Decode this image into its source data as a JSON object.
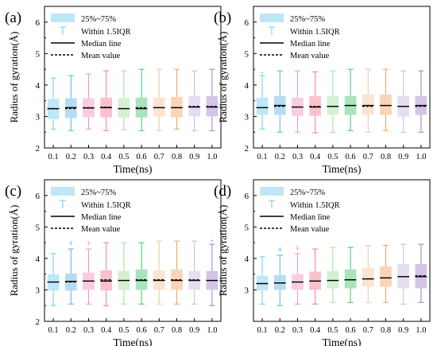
{
  "figure": {
    "ylabel": "Radius of gyration(Å)",
    "xlabel": "Time(ns)",
    "legend": {
      "box": "25%~75%",
      "whisker": "Within 1.5IQR",
      "median": "Median line",
      "mean": "Mean value"
    }
  },
  "palette": [
    "#6bcbf0",
    "#58b1e4",
    "#f48fc4",
    "#f5768e",
    "#9fe09a",
    "#3fc46a",
    "#f5c39b",
    "#f5a05a",
    "#c6b3e0",
    "#a07cc8"
  ],
  "chart_data": [
    {
      "type": "box",
      "panel_label": "(a)",
      "categories": [
        "0.1",
        "0.2",
        "0.3",
        "0.4",
        "0.5",
        "0.6",
        "0.7",
        "0.8",
        "0.9",
        "1.0"
      ],
      "yticks": [
        "2",
        "3",
        "4",
        "5",
        "6"
      ],
      "ylim": [
        2,
        6.5
      ],
      "boxes": [
        {
          "min": 2.6,
          "q1": 2.92,
          "median": 3.25,
          "mean": 3.24,
          "q3": 3.55,
          "max": 4.22,
          "outliers": []
        },
        {
          "min": 2.55,
          "q1": 2.95,
          "median": 3.28,
          "mean": 3.25,
          "q3": 3.58,
          "max": 4.3,
          "outliers": []
        },
        {
          "min": 2.6,
          "q1": 2.98,
          "median": 3.27,
          "mean": 3.28,
          "q3": 3.58,
          "max": 4.35,
          "outliers": []
        },
        {
          "min": 2.55,
          "q1": 2.97,
          "median": 3.28,
          "mean": 3.3,
          "q3": 3.6,
          "max": 4.45,
          "outliers": []
        },
        {
          "min": 2.58,
          "q1": 2.97,
          "median": 3.25,
          "mean": 3.25,
          "q3": 3.58,
          "max": 4.45,
          "outliers": []
        },
        {
          "min": 2.55,
          "q1": 2.97,
          "median": 3.25,
          "mean": 3.28,
          "q3": 3.6,
          "max": 4.5,
          "outliers": []
        },
        {
          "min": 2.55,
          "q1": 3.0,
          "median": 3.28,
          "mean": 3.28,
          "q3": 3.6,
          "max": 4.5,
          "outliers": []
        },
        {
          "min": 2.6,
          "q1": 2.97,
          "median": 3.28,
          "mean": 3.28,
          "q3": 3.62,
          "max": 4.5,
          "outliers": []
        },
        {
          "min": 2.55,
          "q1": 3.0,
          "median": 3.3,
          "mean": 3.32,
          "q3": 3.65,
          "max": 4.45,
          "outliers": []
        },
        {
          "min": 2.55,
          "q1": 3.0,
          "median": 3.3,
          "mean": 3.32,
          "q3": 3.65,
          "max": 4.5,
          "outliers": []
        }
      ]
    },
    {
      "type": "box",
      "panel_label": "(b)",
      "categories": [
        "0.1",
        "0.2",
        "0.3",
        "0.4",
        "0.5",
        "0.6",
        "0.7",
        "0.8",
        "0.9",
        "1.0"
      ],
      "yticks": [
        "2",
        "3",
        "4",
        "5",
        "6"
      ],
      "ylim": [
        2,
        6.5
      ],
      "boxes": [
        {
          "min": 2.6,
          "q1": 3.05,
          "median": 3.28,
          "mean": 3.28,
          "q3": 3.6,
          "max": 4.3,
          "outliers": [
            4.38
          ]
        },
        {
          "min": 2.5,
          "q1": 3.05,
          "median": 3.35,
          "mean": 3.32,
          "q3": 3.65,
          "max": 4.45,
          "outliers": []
        },
        {
          "min": 2.5,
          "q1": 3.02,
          "median": 3.3,
          "mean": 3.3,
          "q3": 3.6,
          "max": 4.45,
          "outliers": []
        },
        {
          "min": 2.48,
          "q1": 3.02,
          "median": 3.3,
          "mean": 3.32,
          "q3": 3.65,
          "max": 4.42,
          "outliers": []
        },
        {
          "min": 2.5,
          "q1": 3.05,
          "median": 3.32,
          "mean": 3.32,
          "q3": 3.65,
          "max": 4.45,
          "outliers": []
        },
        {
          "min": 2.55,
          "q1": 3.05,
          "median": 3.35,
          "mean": 3.35,
          "q3": 3.65,
          "max": 4.5,
          "outliers": []
        },
        {
          "min": 2.5,
          "q1": 3.05,
          "median": 3.35,
          "mean": 3.32,
          "q3": 3.7,
          "max": 4.5,
          "outliers": []
        },
        {
          "min": 2.55,
          "q1": 3.05,
          "median": 3.35,
          "mean": 3.35,
          "q3": 3.7,
          "max": 4.5,
          "outliers": []
        },
        {
          "min": 2.5,
          "q1": 3.0,
          "median": 3.32,
          "mean": 3.32,
          "q3": 3.65,
          "max": 4.45,
          "outliers": []
        },
        {
          "min": 2.5,
          "q1": 3.05,
          "median": 3.35,
          "mean": 3.32,
          "q3": 3.65,
          "max": 4.45,
          "outliers": []
        }
      ]
    },
    {
      "type": "box",
      "panel_label": "(c)",
      "categories": [
        "0.1",
        "0.2",
        "0.3",
        "0.4",
        "0.5",
        "0.6",
        "0.7",
        "0.8",
        "0.9",
        "1.0"
      ],
      "yticks": [
        "2",
        "3",
        "4",
        "5",
        "6"
      ],
      "ylim": [
        2,
        6.5
      ],
      "boxes": [
        {
          "min": 2.5,
          "q1": 2.98,
          "median": 3.25,
          "mean": 3.25,
          "q3": 3.5,
          "max": 4.15,
          "outliers": []
        },
        {
          "min": 2.55,
          "q1": 2.98,
          "median": 3.27,
          "mean": 3.25,
          "q3": 3.52,
          "max": 4.3,
          "outliers": [
            4.45,
            4.5
          ]
        },
        {
          "min": 2.55,
          "q1": 3.0,
          "median": 3.28,
          "mean": 3.28,
          "q3": 3.55,
          "max": 4.3,
          "outliers": [
            4.45,
            4.5
          ]
        },
        {
          "min": 2.5,
          "q1": 2.98,
          "median": 3.28,
          "mean": 3.32,
          "q3": 3.62,
          "max": 4.5,
          "outliers": []
        },
        {
          "min": 2.55,
          "q1": 3.0,
          "median": 3.3,
          "mean": 3.3,
          "q3": 3.6,
          "max": 4.5,
          "outliers": []
        },
        {
          "min": 2.55,
          "q1": 3.0,
          "median": 3.3,
          "mean": 3.32,
          "q3": 3.65,
          "max": 4.5,
          "outliers": []
        },
        {
          "min": 2.55,
          "q1": 3.0,
          "median": 3.3,
          "mean": 3.32,
          "q3": 3.62,
          "max": 4.55,
          "outliers": []
        },
        {
          "min": 2.55,
          "q1": 3.0,
          "median": 3.3,
          "mean": 3.32,
          "q3": 3.65,
          "max": 4.55,
          "outliers": []
        },
        {
          "min": 2.55,
          "q1": 3.0,
          "median": 3.3,
          "mean": 3.32,
          "q3": 3.6,
          "max": 4.55,
          "outliers": []
        },
        {
          "min": 2.5,
          "q1": 3.0,
          "median": 3.3,
          "mean": 3.3,
          "q3": 3.6,
          "max": 4.45,
          "outliers": [
            4.55
          ]
        }
      ]
    },
    {
      "type": "box",
      "panel_label": "(d)",
      "categories": [
        "0.1",
        "0.2",
        "0.3",
        "0.4",
        "0.5",
        "0.6",
        "0.7",
        "0.8",
        "0.9",
        "1.0"
      ],
      "yticks": [
        "3",
        "4",
        "5",
        "6"
      ],
      "ylim": [
        2,
        6.5
      ],
      "boxes": [
        {
          "min": 2.55,
          "q1": 2.98,
          "median": 3.2,
          "mean": 3.2,
          "q3": 3.45,
          "max": 4.05,
          "outliers": []
        },
        {
          "min": 2.5,
          "q1": 3.0,
          "median": 3.22,
          "mean": 3.22,
          "q3": 3.47,
          "max": 4.1,
          "outliers": [
            4.25,
            4.3
          ]
        },
        {
          "min": 2.55,
          "q1": 3.0,
          "median": 3.25,
          "mean": 3.25,
          "q3": 3.5,
          "max": 4.15,
          "outliers": [
            4.3,
            4.35
          ]
        },
        {
          "min": 2.55,
          "q1": 3.0,
          "median": 3.28,
          "mean": 3.28,
          "q3": 3.58,
          "max": 4.3,
          "outliers": []
        },
        {
          "min": 2.6,
          "q1": 3.05,
          "median": 3.3,
          "mean": 3.3,
          "q3": 3.6,
          "max": 4.35,
          "outliers": []
        },
        {
          "min": 2.6,
          "q1": 3.05,
          "median": 3.32,
          "mean": 3.32,
          "q3": 3.65,
          "max": 4.35,
          "outliers": []
        },
        {
          "min": 2.6,
          "q1": 3.1,
          "median": 3.35,
          "mean": 3.35,
          "q3": 3.7,
          "max": 4.4,
          "outliers": []
        },
        {
          "min": 2.6,
          "q1": 3.1,
          "median": 3.38,
          "mean": 3.38,
          "q3": 3.75,
          "max": 4.42,
          "outliers": []
        },
        {
          "min": 2.55,
          "q1": 3.05,
          "median": 3.42,
          "mean": 3.42,
          "q3": 3.82,
          "max": 4.45,
          "outliers": []
        },
        {
          "min": 2.6,
          "q1": 3.05,
          "median": 3.42,
          "mean": 3.45,
          "q3": 3.82,
          "max": 4.45,
          "outliers": []
        }
      ]
    }
  ]
}
